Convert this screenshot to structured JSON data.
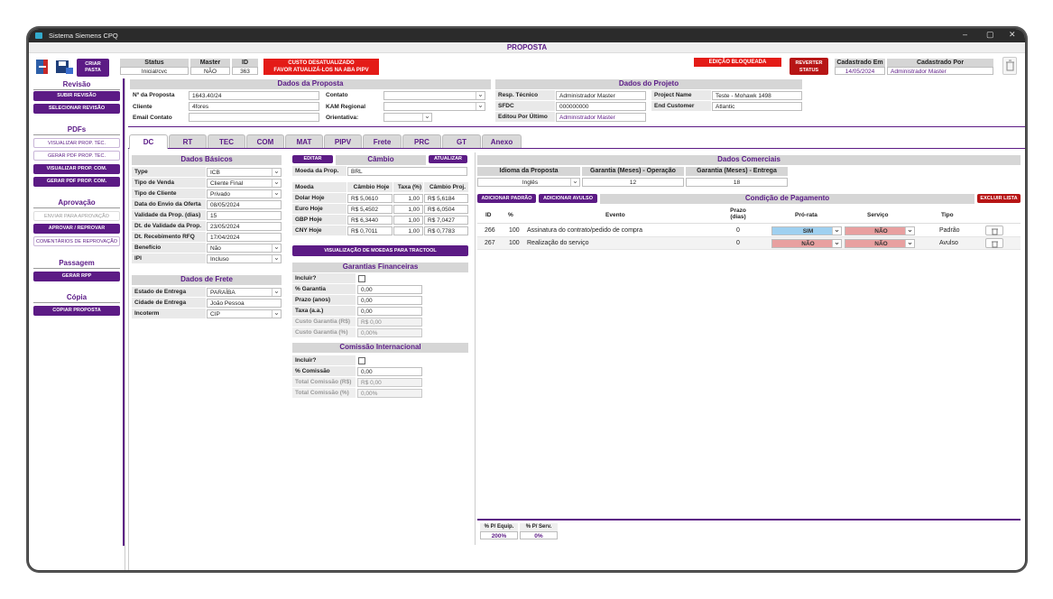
{
  "window": {
    "title": "Sistema Siemens CPQ",
    "header": "PROPOSTA"
  },
  "toolbar": {
    "criar_pasta": "CRIAR PASTA",
    "status_label": "Status",
    "status_value": "Inicial/cvc",
    "master_label": "Master",
    "master_value": "NÃO",
    "id_label": "ID",
    "id_value": "363",
    "custo_warning_1": "CUSTO DESATUALIZADO",
    "custo_warning_2": "FAVOR ATUALIZÁ-LOS NA ABA PIPV",
    "edicao_bloqueada": "EDIÇÃO BLOQUEADA",
    "reverter_1": "REVERTER",
    "reverter_2": "STATUS",
    "cadastrado_em_label": "Cadastrado Em",
    "cadastrado_em_value": "14/05/2024",
    "cadastrado_por_label": "Cadastrado Por",
    "cadastrado_por_value": "Administrador Master"
  },
  "sidebar": {
    "revisao": "Revisão",
    "subir_revisao": "SUBIR REVISÃO",
    "selecionar_revisao": "SELECIONAR REVISÃO",
    "pdfs": "PDFs",
    "vis_prop_tec": "VISUALIZAR PROP. TÉC.",
    "gerar_pdf_tec": "GERAR PDF PROP. TEC.",
    "vis_prop_com": "VISUALIZAR PROP. COM.",
    "gerar_pdf_com": "GERAR PDF PROP. COM.",
    "aprovacao": "Aprovação",
    "enviar_aprovacao": "ENVIAR PARA APROVAÇÃO",
    "aprovar_reprovar": "APROVAR / REPROVAR",
    "comentarios": "COMENTÁRIOS DE REPROVAÇÃO",
    "passagem": "Passagem",
    "gerar_rpp": "GERAR RPP",
    "copia": "Cópia",
    "copiar_proposta": "COPIAR PROPOSTA"
  },
  "dados_proposta": {
    "title": "Dados da Proposta",
    "n_proposta_label": "Nº da Proposta",
    "n_proposta": "1643.40/24",
    "cliente_label": "Cliente",
    "cliente": "4fores",
    "email_label": "Email Contato",
    "email": "",
    "contato_label": "Contato",
    "contato": "",
    "kam_label": "KAM Regional",
    "kam": "",
    "orientativa_label": "Orientativa:",
    "orientativa": ""
  },
  "dados_projeto": {
    "title": "Dados do Projeto",
    "resp_tecnico_label": "Resp. Técnico",
    "resp_tecnico": "Administrador Master",
    "project_name_label": "Project Name",
    "project_name": "Teste - Mohawk 1498",
    "sfdc_label": "SFDC",
    "sfdc": "000000000",
    "end_customer_label": "End Customer",
    "end_customer": "Atlantic",
    "editou_label": "Editou Por Último",
    "editou": "Administrador Master"
  },
  "tabs": [
    {
      "label": "DC"
    },
    {
      "label": "RT"
    },
    {
      "label": "TEC"
    },
    {
      "label": "COM"
    },
    {
      "label": "MAT"
    },
    {
      "label": "PIPV"
    },
    {
      "label": "Frete"
    },
    {
      "label": "PRC"
    },
    {
      "label": "GT"
    },
    {
      "label": "Anexo"
    }
  ],
  "dados_basicos": {
    "title": "Dados Básicos",
    "rows": [
      {
        "label": "Type",
        "value": "ICB"
      },
      {
        "label": "Tipo de Venda",
        "value": "Cliente Final"
      },
      {
        "label": "Tipo de Cliente",
        "value": "Privado"
      },
      {
        "label": "Data do Envio da Oferta",
        "value": "08/05/2024"
      },
      {
        "label": "Validade da Prop. (dias)",
        "value": "15"
      },
      {
        "label": "Dt. de Validade da Prop.",
        "value": "23/05/2024"
      },
      {
        "label": "Dt. Recebimento RFQ",
        "value": "17/04/2024"
      },
      {
        "label": "Benefício",
        "value": "Não"
      },
      {
        "label": "IPI",
        "value": "Incluso"
      }
    ]
  },
  "dados_frete": {
    "title": "Dados de Frete",
    "rows": [
      {
        "label": "Estado de Entrega",
        "value": "PARAÍBA"
      },
      {
        "label": "Cidade de Entrega",
        "value": "João Pessoa"
      },
      {
        "label": "Incoterm",
        "value": "CIP"
      }
    ]
  },
  "cambio": {
    "title": "Câmbio",
    "editar": "EDITAR",
    "atualizar": "ATUALIZAR",
    "moeda_prop_label": "Moeda da Prop.",
    "moeda_prop": "BRL",
    "headers": [
      "Moeda",
      "Câmbio Hoje",
      "Taxa (%)",
      "Câmbio Proj."
    ],
    "rows": [
      [
        "Dolar Hoje",
        "R$ 5,0610",
        "1,00",
        "R$ 5,6184"
      ],
      [
        "Euro Hoje",
        "R$ 5,4502",
        "1,00",
        "R$ 6,0504"
      ],
      [
        "GBP Hoje",
        "R$ 6,3440",
        "1,00",
        "R$ 7,0427"
      ],
      [
        "CNY Hoje",
        "R$ 0,7011",
        "1,00",
        "R$ 0,7783"
      ]
    ],
    "visualizacao": "VISUALIZAÇÃO DE MOEDAS PARA TRACTOOL"
  },
  "garantias": {
    "title": "Garantias Financeiras",
    "incluir": "Incluir?",
    "perc_garantia_label": "% Garantia",
    "perc_garantia": "0,00",
    "prazo_label": "Prazo (anos)",
    "prazo": "0,00",
    "taxa_label": "Taxa (a.a.)",
    "taxa": "0,00",
    "custo_rs_label": "Custo Garantia (R$)",
    "custo_rs": "R$ 0,00",
    "custo_pc_label": "Custo Garantia (%)",
    "custo_pc": "0,00%"
  },
  "comissao": {
    "title": "Comissão Internacional",
    "incluir": "Incluir?",
    "perc_label": "% Comissão",
    "perc": "0,00",
    "total_rs_label": "Total Comissão (R$)",
    "total_rs": "R$ 0,00",
    "total_pc_label": "Total Comissão (%)",
    "total_pc": "0,00%"
  },
  "dados_comerciais": {
    "title": "Dados Comerciais",
    "idioma_label": "Idioma da Proposta",
    "idioma": "Inglês",
    "gar_op_label": "Garantia (Meses) - Operação",
    "gar_op": "12",
    "gar_ent_label": "Garantia (Meses) - Entrega",
    "gar_ent": "18"
  },
  "condicao": {
    "title": "Condição de Pagamento",
    "add_padrao": "ADICIONAR PADRÃO",
    "add_avulso": "ADICIONAR AVULSO",
    "excluir": "EXCLUIR LISTA",
    "headers": {
      "id": "ID",
      "pc": "%",
      "evento": "Evento",
      "prazo": "Prazo (dias)",
      "prorata": "Pró-rata",
      "servico": "Serviço",
      "tipo": "Tipo"
    },
    "rows": [
      {
        "id": "266",
        "pc": "100",
        "evento": "Assinatura do contrato/pedido de compra",
        "prazo": "0",
        "prorata": "SIM",
        "servico": "NÃO",
        "tipo": "Padrão"
      },
      {
        "id": "267",
        "pc": "100",
        "evento": "Realização do serviço",
        "prazo": "0",
        "prorata": "NÃO",
        "servico": "NÃO",
        "tipo": "Avulso"
      }
    ],
    "p_equip_label": "% P/ Equip.",
    "p_equip": "200%",
    "p_serv_label": "% P/ Serv.",
    "p_serv": "0%"
  },
  "colors": {
    "accent": "#5c1b85",
    "red": "#e41b17",
    "sim": "#9fd0f0",
    "nao": "#e8a0a0"
  }
}
